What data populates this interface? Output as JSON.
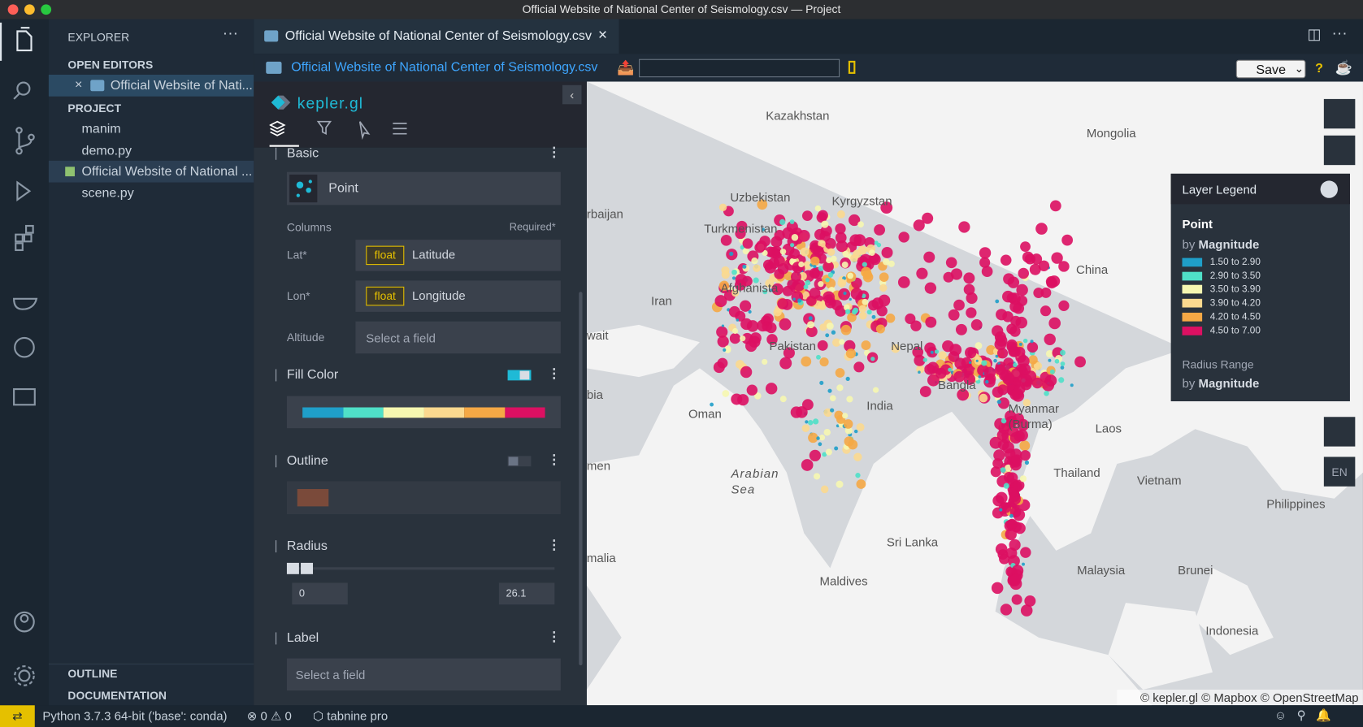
{
  "window_title": "Official Website of National Center of Seismology.csv — Project",
  "sidebar": {
    "title": "EXPLORER",
    "open_editors": "OPEN EDITORS",
    "open_item": "Official Website of Nati...",
    "project": "PROJECT",
    "tree": [
      "manim",
      "demo.py",
      "Official Website of National ...",
      "scene.py"
    ],
    "outline": "OUTLINE",
    "documentation": "DOCUMENTATION"
  },
  "tab": {
    "title": "Official Website of National Center of Seismology.csv"
  },
  "toolbar": {
    "file": "Official Website of National Center of Seismology.csv",
    "save": "Save",
    "help": "?"
  },
  "kepler": {
    "brand": "kepler.gl",
    "basic": "Basic",
    "layer_type": "Point",
    "columns": "Columns",
    "required": "Required*",
    "fields": [
      {
        "label": "Lat*",
        "type": "float",
        "value": "Latitude"
      },
      {
        "label": "Lon*",
        "type": "float",
        "value": "Longitude"
      },
      {
        "label": "Altitude",
        "value": "Select a field"
      }
    ],
    "fill_color": "Fill Color",
    "outline": "Outline",
    "radius": "Radius",
    "radius_min": "0",
    "radius_max": "26.1",
    "label": "Label",
    "label_field": "Select a field"
  },
  "map": {
    "labels": [
      "Kazakhstan",
      "Mongolia",
      "Uzbekistan",
      "Kyrgyzstan",
      "rbaijan",
      "Turkmenistan",
      "China",
      "Afghanista",
      "Iran",
      "wait",
      "Pakistan",
      "Nepal",
      "India",
      "Bangla",
      "Oman",
      "bia",
      "Myanmar",
      "(Burma)",
      "Laos",
      "men",
      "Arabian",
      "Sea",
      "Thailand",
      "Vietnam",
      "Philippines",
      "Sri Lanka",
      "Maldives",
      "Malaysia",
      "Brunei",
      "Indonesia",
      "malia"
    ],
    "attribution": "© kepler.gl © Mapbox © OpenStreetMap",
    "lang": "EN"
  },
  "legend": {
    "title": "Layer Legend",
    "layer": "Point",
    "by": "by",
    "field": "Magnitude",
    "items": [
      {
        "label": "1.50 to 2.90",
        "color": "#1f9fc9"
      },
      {
        "label": "2.90 to 3.50",
        "color": "#4fe0c8"
      },
      {
        "label": "3.50 to 3.90",
        "color": "#f6f7b0"
      },
      {
        "label": "3.90 to 4.20",
        "color": "#fbd98f"
      },
      {
        "label": "4.20 to 4.50",
        "color": "#f5a845"
      },
      {
        "label": "4.50 to 7.00",
        "color": "#dc1062"
      }
    ],
    "radius_title": "Radius Range",
    "radius_by": "by",
    "radius_field": "Magnitude"
  },
  "status": {
    "python": "Python 3.7.3 64-bit ('base': conda)",
    "errors": "0",
    "warnings": "0",
    "tabnine": "tabnine pro"
  }
}
